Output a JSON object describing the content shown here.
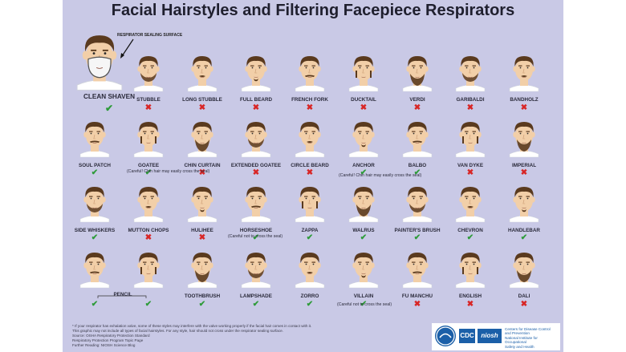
{
  "title": "Facial Hairstyles and Filtering Facepiece Respirators",
  "sealing_surface_label": "RESPIRATOR SEALING SURFACE",
  "clean_shaven": {
    "label": "CLEAN SHAVEN",
    "ok": true
  },
  "rows": [
    [
      {
        "label": "STUBBLE",
        "ok": false
      },
      {
        "label": "LONG STUBBLE",
        "ok": false
      },
      {
        "label": "FULL BEARD",
        "ok": false
      },
      {
        "label": "FRENCH FORK",
        "ok": false
      },
      {
        "label": "DUCKTAIL",
        "ok": false
      },
      {
        "label": "VERDI",
        "ok": false
      },
      {
        "label": "GARIBALDI",
        "ok": false
      },
      {
        "label": "BANDHOLZ",
        "ok": false
      }
    ],
    [
      {
        "label": "SOUL PATCH",
        "ok": true
      },
      {
        "label": "GOATEE",
        "ok": true
      },
      {
        "label": "CHIN CURTAIN",
        "ok": false
      },
      {
        "label": "EXTENDED GOATEE",
        "ok": false
      },
      {
        "label": "CIRCLE BEARD",
        "ok": false
      },
      {
        "label": "ANCHOR",
        "ok": true
      },
      {
        "label": "BALBO",
        "ok": true
      },
      {
        "label": "VAN DYKE",
        "ok": false
      },
      {
        "label": "IMPERIAL",
        "ok": false
      }
    ],
    [
      {
        "label": "SIDE WHISKERS",
        "ok": true
      },
      {
        "label": "MUTTON CHOPS",
        "ok": false
      },
      {
        "label": "HULIHEE",
        "ok": false
      },
      {
        "label": "HORSESHOE",
        "ok": true
      },
      {
        "label": "ZAPPA",
        "ok": true
      },
      {
        "label": "WALRUS",
        "ok": true
      },
      {
        "label": "PAINTER'S BRUSH",
        "ok": true
      },
      {
        "label": "CHEVRON",
        "ok": true
      },
      {
        "label": "HANDLEBAR",
        "ok": true
      }
    ],
    [
      {
        "label": "",
        "ok": true
      },
      {
        "label": "",
        "ok": true
      },
      {
        "label": "TOOTHBRUSH",
        "ok": true
      },
      {
        "label": "LAMPSHADE",
        "ok": true
      },
      {
        "label": "ZORRO",
        "ok": true
      },
      {
        "label": "VILLAIN",
        "ok": true
      },
      {
        "label": "FU MANCHU",
        "ok": false
      },
      {
        "label": "ENGLISH",
        "ok": false
      },
      {
        "label": "DALI",
        "ok": false
      }
    ]
  ],
  "pencil_label": "PENCIL",
  "notes": {
    "goatee": "(Careful! Chin hair may easily cross the seal)",
    "anchor": "(Careful! Chin hair may easily cross the seal)",
    "horseshoe": "(Careful not to cross the seal)",
    "villain": "(Careful not to cross the seal)"
  },
  "footer_lines": [
    "* If your respirator has exhalation valve, some of these styles may interfere with the valve working properly if the facial hair comes in contact with it.",
    "This graphic may not include all types of facial hairstyles. For any style, hair should not cross under the respirator sealing surface.",
    "Source: OSHA Respiratory Protection Standard",
    "Respiratory Protection Program Topic Page",
    "Further Reading: NIOSH Science Blog"
  ],
  "agency": {
    "cdc": "CDC",
    "niosh": "niosh",
    "name_lines": [
      "Centers for Disease Control",
      "and Prevention",
      "National Institute for Occupational",
      "Safety and Health"
    ]
  },
  "colors": {
    "poster_bg": "#c9c9e6",
    "ok": "#2e9b3a",
    "no": "#d82626",
    "hair": "#5a3a1e",
    "skin": "#f2cfa8",
    "brand_blue": "#1b5fa8"
  }
}
